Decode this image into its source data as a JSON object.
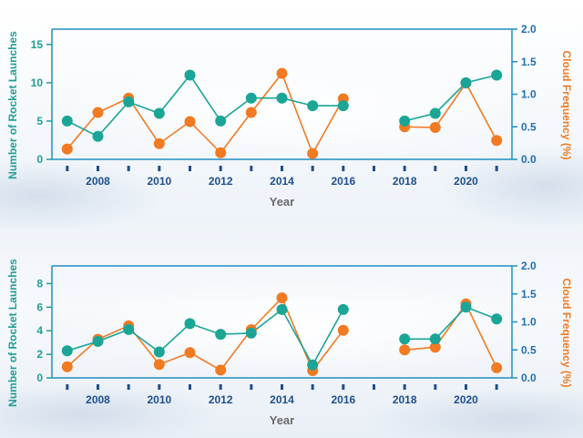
{
  "colors": {
    "launches": "#1aa596",
    "cloud": "#f17a22",
    "axis": "#1f8fc3",
    "year_ticks": "#1f4f8b",
    "xlabel": "#6a6a6a"
  },
  "chart_data": [
    {
      "type": "line",
      "xlabel": "Year",
      "ylabel_left": "Number of Rocket Launches",
      "ylabel_right": "Cloud Frequency (%)",
      "xlim": [
        2006.5,
        2021.5
      ],
      "ylim_left": [
        0,
        17
      ],
      "ylim_right": [
        0,
        2.0
      ],
      "xticks": [
        2008,
        2010,
        2012,
        2014,
        2016,
        2018,
        2020
      ],
      "xtick_labels": [
        "2008",
        "2010",
        "2012",
        "2014",
        "2016",
        "2018",
        "2020"
      ],
      "yticks_left": [
        0,
        5,
        10,
        15
      ],
      "yticks_left_labels": [
        "0",
        "5",
        "10",
        "15"
      ],
      "yticks_right": [
        0,
        0.5,
        1.0,
        1.5,
        2.0
      ],
      "yticks_right_labels": [
        "0.0",
        "0.5",
        "1.0",
        "1.5",
        "2.0"
      ],
      "series": [
        {
          "axis": "left",
          "color": "#1aa596",
          "x": [
            2007,
            2008,
            2009,
            2010,
            2011,
            2012,
            2013,
            2014,
            2015,
            2016,
            2018,
            2019,
            2020,
            2021
          ],
          "y": [
            5,
            3,
            7.5,
            6,
            11,
            5,
            8,
            8,
            7,
            7,
            5,
            6,
            10,
            11
          ],
          "segments": [
            [
              2007,
              2016
            ],
            [
              2018,
              2021
            ]
          ]
        },
        {
          "axis": "right",
          "color": "#f17a22",
          "x": [
            2007,
            2008,
            2009,
            2010,
            2011,
            2012,
            2013,
            2014,
            2015,
            2016,
            2018,
            2019,
            2020,
            2021
          ],
          "y": [
            0.16,
            0.72,
            0.94,
            0.24,
            0.58,
            0.1,
            0.72,
            1.32,
            0.09,
            0.93,
            0.5,
            0.49,
            1.17,
            0.29
          ],
          "segments": [
            [
              2007,
              2016
            ],
            [
              2018,
              2021
            ]
          ]
        }
      ]
    },
    {
      "type": "line",
      "xlabel": "Year",
      "ylabel_left": "Number of Rocket Launches",
      "ylabel_right": "Cloud Frequency (%)",
      "xlim": [
        2006.5,
        2021.5
      ],
      "ylim_left": [
        0,
        9.5
      ],
      "ylim_right": [
        0,
        2.0
      ],
      "xticks": [
        2008,
        2010,
        2012,
        2014,
        2016,
        2018,
        2020
      ],
      "xtick_labels": [
        "2008",
        "2010",
        "2012",
        "2014",
        "2016",
        "2018",
        "2020"
      ],
      "yticks_left": [
        0,
        2,
        4,
        6,
        8
      ],
      "yticks_left_labels": [
        "0",
        "2",
        "4",
        "6",
        "8"
      ],
      "yticks_right": [
        0,
        0.5,
        1.0,
        1.5,
        2.0
      ],
      "yticks_right_labels": [
        "0.0",
        "0.5",
        "1.0",
        "1.5",
        "2.0"
      ],
      "series": [
        {
          "axis": "left",
          "color": "#1aa596",
          "x": [
            2007,
            2008,
            2009,
            2010,
            2011,
            2012,
            2013,
            2014,
            2015,
            2016,
            2018,
            2019,
            2020,
            2021
          ],
          "y": [
            2.3,
            3.1,
            4.1,
            2.2,
            4.6,
            3.7,
            3.8,
            5.8,
            1.1,
            5.8,
            3.3,
            3.3,
            6.0,
            5.0
          ],
          "segments": [
            [
              2007,
              2016
            ],
            [
              2018,
              2021
            ]
          ]
        },
        {
          "axis": "right",
          "color": "#f17a22",
          "x": [
            2007,
            2008,
            2009,
            2010,
            2011,
            2012,
            2013,
            2014,
            2015,
            2016,
            2018,
            2019,
            2020,
            2021
          ],
          "y": [
            0.2,
            0.69,
            0.93,
            0.24,
            0.45,
            0.14,
            0.86,
            1.43,
            0.13,
            0.85,
            0.5,
            0.55,
            1.32,
            0.18
          ],
          "segments": [
            [
              2007,
              2016
            ],
            [
              2018,
              2021
            ]
          ]
        }
      ]
    }
  ]
}
